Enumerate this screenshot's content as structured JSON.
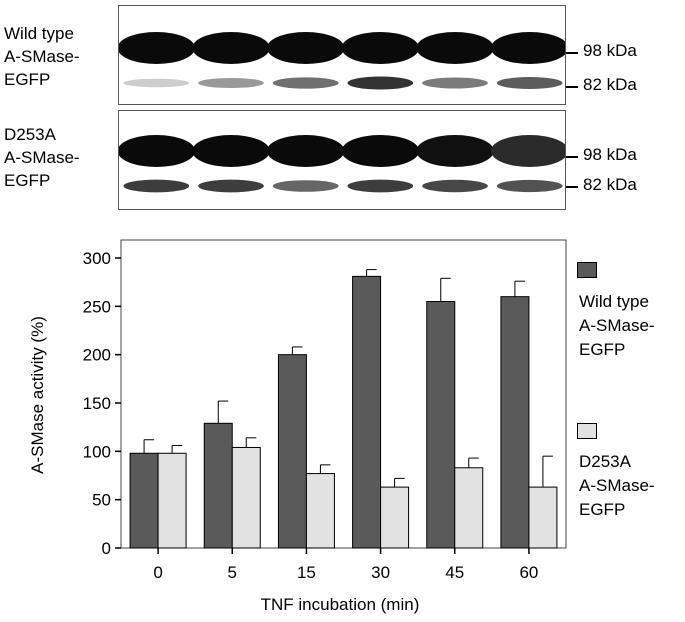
{
  "blots": {
    "wild_type": {
      "label_lines": [
        "Wild type",
        "A-SMase-",
        "EGFP"
      ],
      "band_98": "98 kDa",
      "band_82": "82 kDa",
      "lanes_98_intensity": [
        1.0,
        1.0,
        1.0,
        1.0,
        1.0,
        1.0
      ],
      "lanes_82_intensity": [
        0.1,
        0.35,
        0.55,
        0.85,
        0.5,
        0.65
      ]
    },
    "d253a": {
      "label_lines": [
        "D253A",
        "A-SMase-",
        "EGFP"
      ],
      "band_98": "98 kDa",
      "band_82": "82 kDa",
      "lanes_98_intensity": [
        1.0,
        1.0,
        1.0,
        1.0,
        0.95,
        0.7
      ],
      "lanes_82_intensity": [
        0.8,
        0.8,
        0.6,
        0.8,
        0.75,
        0.7
      ]
    }
  },
  "chart_data": {
    "type": "bar",
    "categories": [
      "0",
      "5",
      "15",
      "30",
      "45",
      "60"
    ],
    "series": [
      {
        "name": "Wild type A-SMase-EGFP",
        "color": "#5a5a5a",
        "values": [
          98,
          129,
          200,
          281,
          255,
          260
        ],
        "errors": [
          14,
          23,
          8,
          7,
          24,
          16
        ]
      },
      {
        "name": "D253A A-SMase-EGFP",
        "color": "#e2e2e2",
        "values": [
          98,
          104,
          77,
          63,
          83,
          63
        ],
        "errors": [
          8,
          10,
          9,
          9,
          10,
          32
        ]
      }
    ],
    "xlabel": "TNF incubation (min)",
    "ylabel": "A-SMase activity (%)",
    "ylim": [
      0,
      300
    ],
    "yticks": [
      0,
      50,
      100,
      150,
      200,
      250,
      300
    ],
    "legend": {
      "position": "right",
      "entries": [
        {
          "lines": [
            "Wild type",
            "A-SMase-",
            "EGFP"
          ],
          "color": "#5a5a5a"
        },
        {
          "lines": [
            "D253A",
            "A-SMase-",
            "EGFP"
          ],
          "color": "#e2e2e2"
        }
      ]
    }
  }
}
